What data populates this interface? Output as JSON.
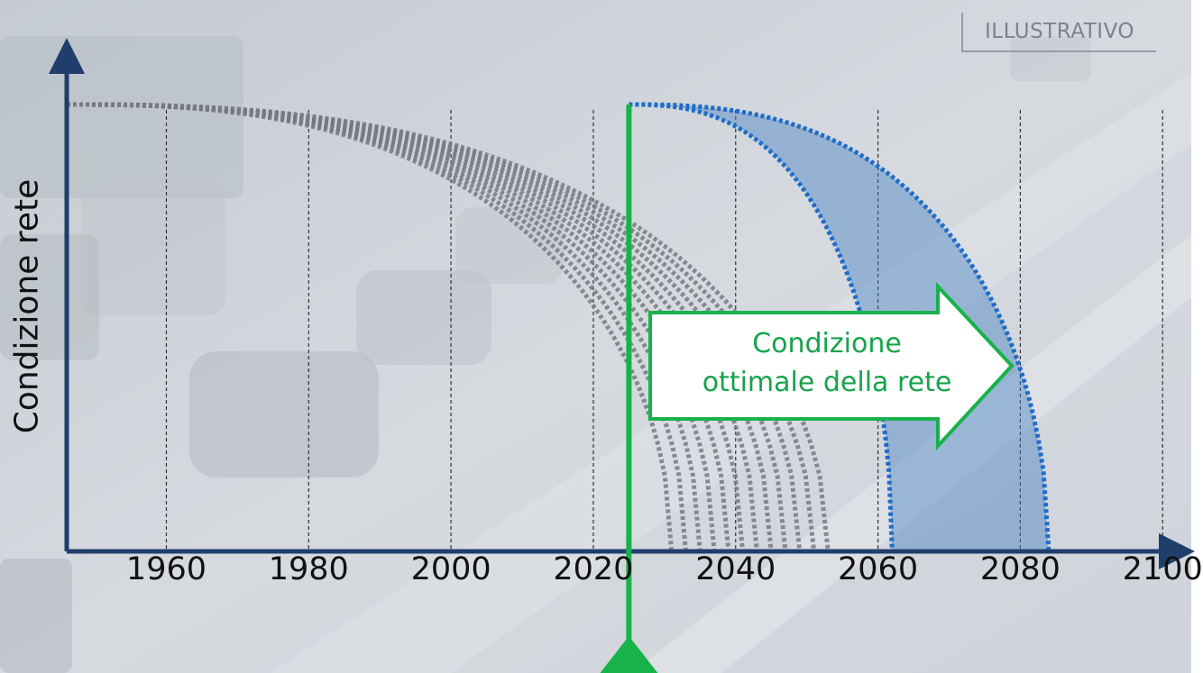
{
  "tag": "ILLUSTRATIVO",
  "chart_data": {
    "type": "line",
    "title": "",
    "ylabel": "Condizione rete",
    "xlabel": "",
    "xlim": [
      1946,
      2102
    ],
    "xticks": [
      1960,
      1980,
      2000,
      2020,
      2040,
      2060,
      2080,
      2100
    ],
    "ylim": [
      0,
      1
    ],
    "grid": "vertical dashed lines at each tick",
    "current_year": 2025,
    "grey_curves_end_years": [
      2031,
      2033,
      2035,
      2037,
      2039,
      2041,
      2043,
      2045,
      2047,
      2049,
      2051,
      2053
    ],
    "blue_band": {
      "start_year": 2025,
      "inner_end_year": 2062,
      "outer_end_year": 2084
    },
    "annotation": "Condizione\nottimale della rete",
    "colors": {
      "axis": "#1f3e6b",
      "grey_curves": "#777a80",
      "blue_band": "#2e6fb8",
      "current_line": "#17b24a",
      "annotation": "#17a34a"
    }
  }
}
